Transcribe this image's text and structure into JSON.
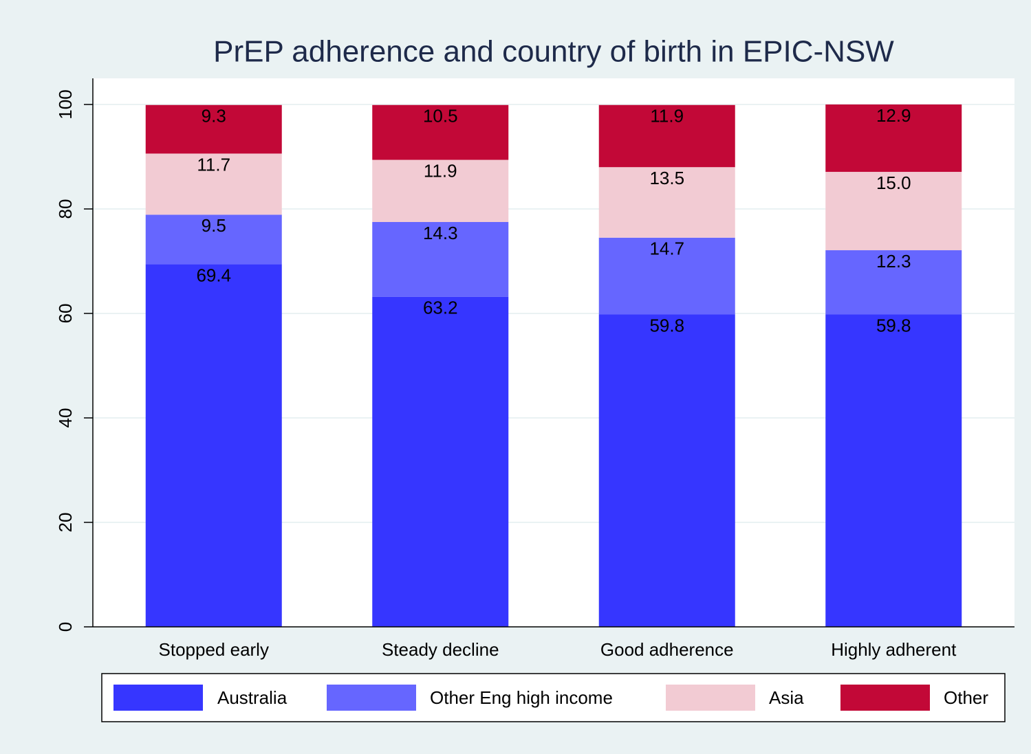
{
  "chart_data": {
    "type": "stacked_bar",
    "title": "PrEP adherence and country of birth in EPIC-NSW",
    "categories": [
      "Stopped early",
      "Steady decline",
      "Good adherence",
      "Highly adherent"
    ],
    "series": [
      {
        "name": "Australia",
        "color": "#3636ff",
        "values": [
          69.4,
          63.2,
          59.8,
          59.8
        ]
      },
      {
        "name": "Other Eng high income",
        "color": "#6666ff",
        "values": [
          9.5,
          14.3,
          14.7,
          12.3
        ]
      },
      {
        "name": "Asia",
        "color": "#f2cbd3",
        "values": [
          11.7,
          11.9,
          13.5,
          15.0
        ],
        "value_labels": [
          "11.7",
          "11.9",
          "13.5",
          "15.0"
        ]
      },
      {
        "name": "Other",
        "color": "#c20837",
        "values": [
          9.3,
          10.5,
          11.9,
          12.9
        ]
      }
    ],
    "ylim": [
      0,
      105
    ],
    "yticks": [
      0,
      20,
      40,
      60,
      80,
      100
    ],
    "grid": true
  }
}
